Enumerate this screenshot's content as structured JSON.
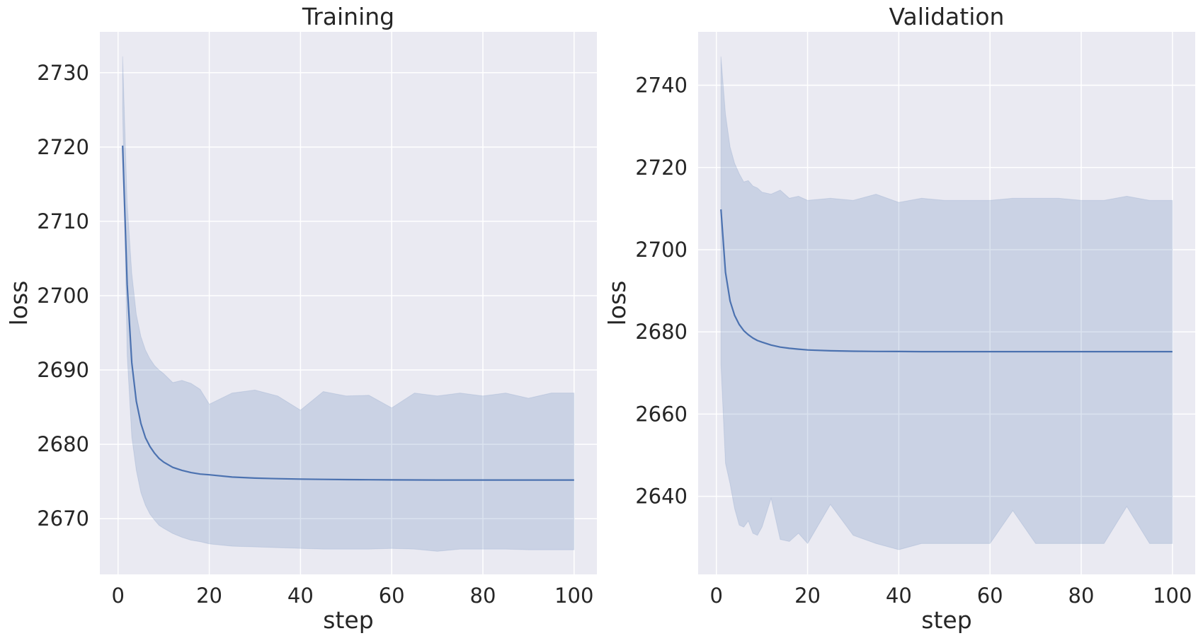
{
  "chart_data": [
    {
      "type": "line",
      "title": "Training",
      "xlabel": "step",
      "ylabel": "loss",
      "xlim": [
        -4,
        105
      ],
      "ylim": [
        2662.5,
        2735.5
      ],
      "xticks": [
        0,
        20,
        40,
        60,
        80,
        100
      ],
      "yticks": [
        2670,
        2680,
        2690,
        2700,
        2710,
        2720,
        2730
      ],
      "grid": true,
      "series": [
        {
          "x": [
            1,
            2,
            3,
            4,
            5,
            6,
            7,
            8,
            9,
            10,
            12,
            14,
            16,
            18,
            20,
            25,
            30,
            35,
            40,
            45,
            50,
            55,
            60,
            65,
            70,
            75,
            80,
            85,
            90,
            95,
            100
          ],
          "mean": [
            2720.2,
            2701.5,
            2691.0,
            2685.8,
            2682.8,
            2680.9,
            2679.7,
            2678.8,
            2678.1,
            2677.6,
            2676.9,
            2676.5,
            2676.2,
            2676.0,
            2675.9,
            2675.6,
            2675.45,
            2675.38,
            2675.32,
            2675.28,
            2675.25,
            2675.23,
            2675.22,
            2675.21,
            2675.2,
            2675.2,
            2675.2,
            2675.2,
            2675.2,
            2675.2,
            2675.2
          ],
          "upper": [
            2732.2,
            2712.5,
            2703.0,
            2697.5,
            2694.5,
            2692.7,
            2691.5,
            2690.6,
            2690.0,
            2689.5,
            2688.3,
            2688.6,
            2688.2,
            2687.4,
            2685.4,
            2686.9,
            2687.3,
            2686.5,
            2684.6,
            2687.1,
            2686.5,
            2686.6,
            2684.9,
            2686.9,
            2686.5,
            2686.9,
            2686.5,
            2686.9,
            2686.2,
            2686.9,
            2686.9
          ],
          "lower": [
            2725.0,
            2692.0,
            2681.0,
            2676.5,
            2673.5,
            2671.8,
            2670.6,
            2669.8,
            2669.1,
            2668.7,
            2668.0,
            2667.5,
            2667.1,
            2666.9,
            2666.6,
            2666.3,
            2666.2,
            2666.1,
            2666.0,
            2665.9,
            2665.9,
            2665.9,
            2666.0,
            2665.9,
            2665.6,
            2665.9,
            2665.9,
            2665.9,
            2665.8,
            2665.8,
            2665.8
          ]
        }
      ]
    },
    {
      "type": "line",
      "title": "Validation",
      "xlabel": "step",
      "ylabel": "loss",
      "xlim": [
        -4,
        105
      ],
      "ylim": [
        2621,
        2753
      ],
      "xticks": [
        0,
        20,
        40,
        60,
        80,
        100
      ],
      "yticks": [
        2640,
        2660,
        2680,
        2700,
        2720,
        2740
      ],
      "grid": true,
      "series": [
        {
          "x": [
            1,
            2,
            3,
            4,
            5,
            6,
            7,
            8,
            9,
            10,
            12,
            14,
            16,
            18,
            20,
            25,
            30,
            35,
            40,
            45,
            50,
            55,
            60,
            65,
            70,
            75,
            80,
            85,
            90,
            95,
            100
          ],
          "mean": [
            2709.8,
            2694.5,
            2687.5,
            2684.0,
            2681.8,
            2680.3,
            2679.3,
            2678.5,
            2677.9,
            2677.5,
            2676.8,
            2676.3,
            2676.0,
            2675.8,
            2675.6,
            2675.4,
            2675.3,
            2675.25,
            2675.22,
            2675.2,
            2675.2,
            2675.2,
            2675.2,
            2675.2,
            2675.2,
            2675.2,
            2675.2,
            2675.2,
            2675.2,
            2675.2,
            2675.2
          ],
          "upper": [
            2747.0,
            2733.0,
            2725.0,
            2721.0,
            2718.5,
            2716.5,
            2716.8,
            2715.5,
            2715.0,
            2714.0,
            2713.5,
            2714.5,
            2712.5,
            2713.0,
            2712.0,
            2712.5,
            2712.0,
            2713.5,
            2711.5,
            2712.5,
            2712.0,
            2712.0,
            2712.0,
            2712.5,
            2712.5,
            2712.5,
            2712.0,
            2712.0,
            2713.0,
            2712.0,
            2712.0
          ],
          "lower": [
            2672.0,
            2648.0,
            2643.0,
            2637.0,
            2633.0,
            2632.5,
            2634.0,
            2631.0,
            2630.5,
            2632.5,
            2639.5,
            2629.5,
            2629.0,
            2631.0,
            2628.5,
            2638.0,
            2630.5,
            2628.5,
            2627.0,
            2628.5,
            2628.5,
            2628.5,
            2628.5,
            2636.5,
            2628.5,
            2628.5,
            2628.5,
            2628.5,
            2637.5,
            2628.5,
            2628.5
          ]
        }
      ]
    }
  ]
}
